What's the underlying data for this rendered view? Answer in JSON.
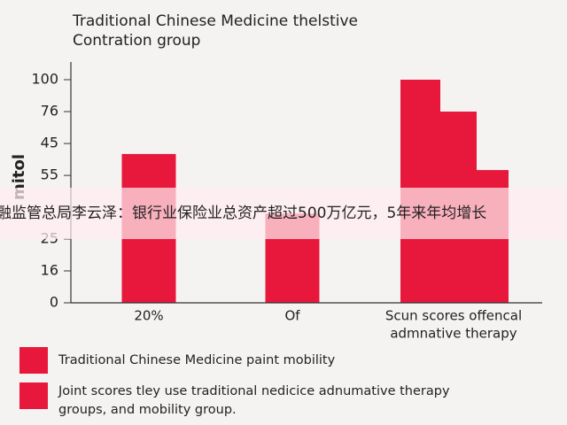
{
  "chart_data": {
    "type": "bar",
    "title": [
      "Traditional Chinese Medicine thelstive",
      "Contration group"
    ],
    "y_label": "mitol",
    "categories": [
      "20%",
      "Of",
      [
        "Scun scores offencal",
        "admnative therapy"
      ]
    ],
    "values": [
      66.7,
      40,
      null
    ],
    "steps": [
      100,
      85.7,
      59.5
    ],
    "color": "#e8173c",
    "ylim": [
      0,
      100
    ],
    "yticks": [
      0,
      {
        "value": 14.3,
        "label": "16"
      },
      {
        "value": 28.6,
        "label": "25"
      },
      {
        "value": 57.1,
        "label": "55"
      },
      {
        "value": 71.4,
        "label": "45"
      },
      {
        "value": 85.7,
        "label": "76"
      },
      100
    ],
    "legend": [
      "Traditional Chinese Medicine paint mobility",
      [
        "Joint scores tley use traditional nedicice adnumative therapy",
        "groups, and mobility group."
      ]
    ],
    "overlay_caption": "融监管总局李云泽：银行业保险业总资产超过500万亿元，5年来年均增长"
  }
}
